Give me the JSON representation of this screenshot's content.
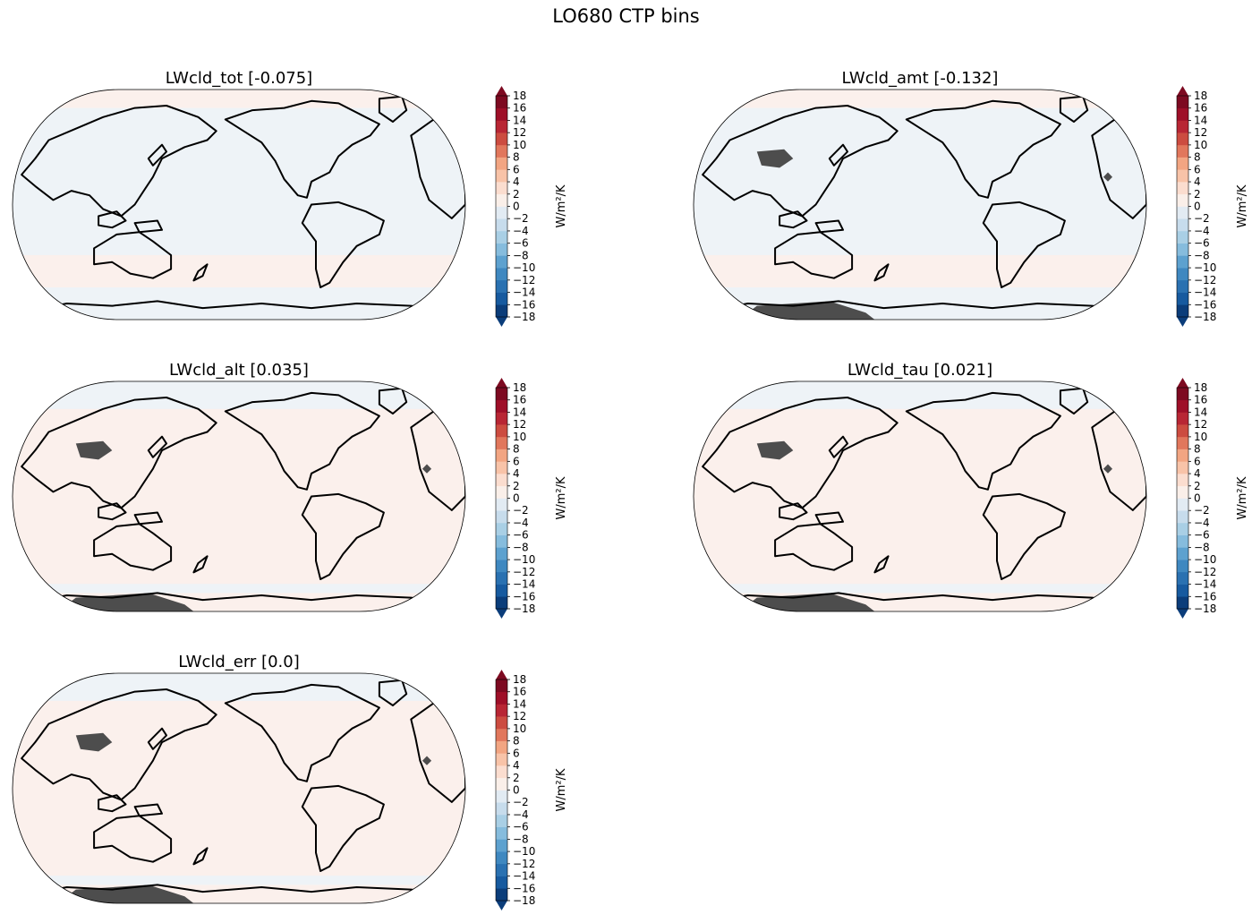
{
  "figure": {
    "title": "LO680 CTP bins"
  },
  "colors": {
    "positive_field": "#fbf0ec",
    "negative_field": "#eef3f7",
    "missing": "#4d4d4d",
    "coast": "#000000"
  },
  "chart_data": [
    {
      "type": "heatmap",
      "projection": "Robinson (Pacific-centred)",
      "title": "LWcld_tot [-0.075]",
      "colorbar": {
        "label": "W/m²/K",
        "range": [
          -18,
          18
        ],
        "extend": "both",
        "ticks": [
          "18",
          "16",
          "14",
          "12",
          "10",
          "8",
          "6",
          "4",
          "2",
          "0",
          "−2",
          "−4",
          "−6",
          "−8",
          "−10",
          "−12",
          "−14",
          "−16",
          "−18"
        ]
      },
      "field": {
        "dominant_sign": "negative",
        "missing_regions": []
      }
    },
    {
      "type": "heatmap",
      "projection": "Robinson (Pacific-centred)",
      "title": "LWcld_amt [-0.132]",
      "colorbar": {
        "label": "W/m²/K",
        "range": [
          -18,
          18
        ],
        "extend": "both",
        "ticks": [
          "18",
          "16",
          "14",
          "12",
          "10",
          "8",
          "6",
          "4",
          "2",
          "0",
          "−2",
          "−4",
          "−6",
          "−8",
          "−10",
          "−12",
          "−14",
          "−16",
          "−18"
        ]
      },
      "field": {
        "dominant_sign": "negative",
        "missing_regions": [
          "Tibetan Plateau",
          "Andes",
          "Antarctica"
        ]
      }
    },
    {
      "type": "heatmap",
      "projection": "Robinson (Pacific-centred)",
      "title": "LWcld_alt [0.035]",
      "colorbar": {
        "label": "W/m²/K",
        "range": [
          -18,
          18
        ],
        "extend": "both",
        "ticks": [
          "18",
          "16",
          "14",
          "12",
          "10",
          "8",
          "6",
          "4",
          "2",
          "0",
          "−2",
          "−4",
          "−6",
          "−8",
          "−10",
          "−12",
          "−14",
          "−16",
          "−18"
        ]
      },
      "field": {
        "dominant_sign": "positive",
        "missing_regions": [
          "Tibetan Plateau",
          "Andes",
          "Antarctica"
        ]
      }
    },
    {
      "type": "heatmap",
      "projection": "Robinson (Pacific-centred)",
      "title": "LWcld_tau [0.021]",
      "colorbar": {
        "label": "W/m²/K",
        "range": [
          -18,
          18
        ],
        "extend": "both",
        "ticks": [
          "18",
          "16",
          "14",
          "12",
          "10",
          "8",
          "6",
          "4",
          "2",
          "0",
          "−2",
          "−4",
          "−6",
          "−8",
          "−10",
          "−12",
          "−14",
          "−16",
          "−18"
        ]
      },
      "field": {
        "dominant_sign": "positive",
        "missing_regions": [
          "Tibetan Plateau",
          "Andes",
          "Antarctica"
        ]
      }
    },
    {
      "type": "heatmap",
      "projection": "Robinson (Pacific-centred)",
      "title": "LWcld_err [0.0]",
      "colorbar": {
        "label": "W/m²/K",
        "range": [
          -18,
          18
        ],
        "extend": "both",
        "ticks": [
          "18",
          "16",
          "14",
          "12",
          "10",
          "8",
          "6",
          "4",
          "2",
          "0",
          "−2",
          "−4",
          "−6",
          "−8",
          "−10",
          "−12",
          "−14",
          "−16",
          "−18"
        ]
      },
      "field": {
        "dominant_sign": "positive",
        "missing_regions": [
          "Tibetan Plateau",
          "Andes",
          "Antarctica"
        ]
      }
    }
  ]
}
